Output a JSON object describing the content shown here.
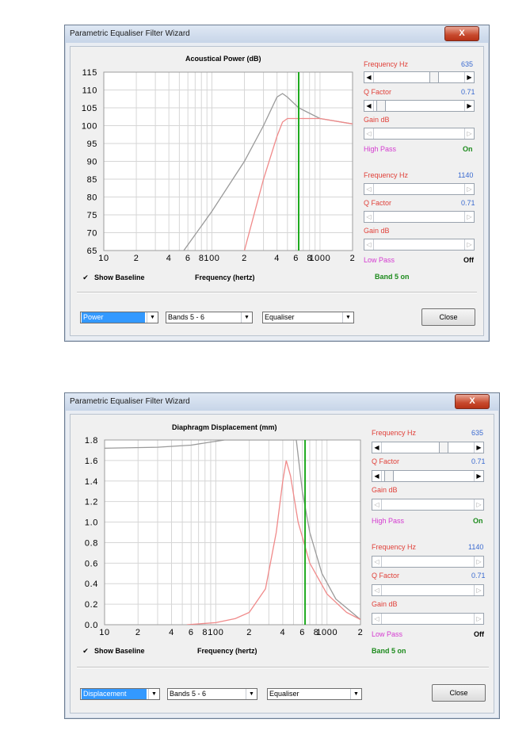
{
  "window1": {
    "title": "Parametric Equaliser Filter Wizard",
    "close_glyph": "X",
    "chart": {
      "title": "Acoustical Power (dB)",
      "y_ticks": [
        "115",
        "110",
        "105",
        "100",
        "95",
        "90",
        "85",
        "80",
        "75",
        "70",
        "65"
      ],
      "x_ticks": [
        "10",
        "2",
        "4",
        "6",
        "8",
        "100",
        "2",
        "4",
        "6",
        "8",
        "1000",
        "2"
      ],
      "x_label": "Frequency (hertz)"
    },
    "band1": {
      "freq_label": "Frequency Hz",
      "freq_value": "635",
      "q_label": "Q Factor",
      "q_value": "0.71",
      "gain_label": "Gain  dB",
      "type_label": "High Pass",
      "type_state": "On"
    },
    "band2": {
      "freq_label": "Frequency Hz",
      "freq_value": "1140",
      "q_label": "Q Factor",
      "q_value": "0.71",
      "gain_label": "Gain  dB",
      "type_label": "Low Pass",
      "type_state": "Off"
    },
    "band_status": "Band 5 on",
    "show_baseline": "Show Baseline",
    "combo_mode": "Power",
    "combo_bands": "Bands 5 - 6",
    "combo_type": "Equaliser",
    "close_button": "Close"
  },
  "window2": {
    "title": "Parametric Equaliser Filter Wizard",
    "close_glyph": "X",
    "chart": {
      "title": "Diaphragm Displacement (mm)",
      "y_ticks": [
        "1.8",
        "1.6",
        "1.4",
        "1.2",
        "1.0",
        "0.8",
        "0.6",
        "0.4",
        "0.2",
        "0.0"
      ],
      "x_ticks": [
        "10",
        "2",
        "4",
        "6",
        "8",
        "100",
        "2",
        "4",
        "6",
        "8",
        "1000",
        "2"
      ],
      "x_label": "Frequency (hertz)"
    },
    "band1": {
      "freq_label": "Frequency Hz",
      "freq_value": "635",
      "q_label": "Q Factor",
      "q_value": "0.71",
      "gain_label": "Gain  dB",
      "type_label": "High Pass",
      "type_state": "On"
    },
    "band2": {
      "freq_label": "Frequency Hz",
      "freq_value": "1140",
      "q_label": "Q Factor",
      "q_value": "0.71",
      "gain_label": "Gain  dB",
      "type_label": "Low Pass",
      "type_state": "Off"
    },
    "band_status": "Band 5 on",
    "show_baseline": "Show Baseline",
    "combo_mode": "Displacement",
    "combo_bands": "Bands 5 - 6",
    "combo_type": "Equaliser",
    "close_button": "Close"
  },
  "colors": {
    "baseline_curve": "#9a9a9a",
    "filtered_curve": "#f08a8a",
    "marker_line": "#1faa1f",
    "grid": "#d6d6d6"
  },
  "chart_data": [
    {
      "type": "line",
      "title": "Acoustical Power (dB)",
      "xlabel": "Frequency (hertz)",
      "ylabel": "",
      "x_scale": "log",
      "xlim": [
        10,
        2000
      ],
      "ylim": [
        65,
        115
      ],
      "marker_x": 635,
      "series": [
        {
          "x": [
            55,
            100,
            200,
            300,
            400,
            450,
            500,
            635,
            1000,
            2000
          ],
          "y": [
            65,
            76,
            90,
            100,
            108,
            109,
            108,
            105,
            102,
            100.5
          ]
        },
        {
          "x": [
            200,
            300,
            400,
            450,
            500,
            635,
            1000,
            2000
          ],
          "y": [
            65,
            85,
            97,
            101,
            102,
            102,
            102,
            100.5
          ]
        }
      ]
    },
    {
      "type": "line",
      "title": "Diaphragm Displacement (mm)",
      "xlabel": "Frequency (hertz)",
      "ylabel": "",
      "x_scale": "log",
      "xlim": [
        10,
        2000
      ],
      "ylim": [
        0,
        1.8
      ],
      "marker_x": 635,
      "series": [
        {
          "x": [
            10,
            30,
            60,
            90,
            120,
            530,
            600,
            700,
            900,
            1200,
            2000
          ],
          "y": [
            1.72,
            1.73,
            1.75,
            1.78,
            1.8,
            1.8,
            1.3,
            0.9,
            0.5,
            0.25,
            0.05
          ]
        },
        {
          "x": [
            55,
            100,
            150,
            200,
            280,
            350,
            400,
            430,
            470,
            550,
            700,
            1000,
            1500,
            2000
          ],
          "y": [
            0.0,
            0.02,
            0.06,
            0.12,
            0.35,
            0.9,
            1.4,
            1.6,
            1.45,
            1.0,
            0.6,
            0.3,
            0.12,
            0.05
          ]
        }
      ]
    }
  ]
}
